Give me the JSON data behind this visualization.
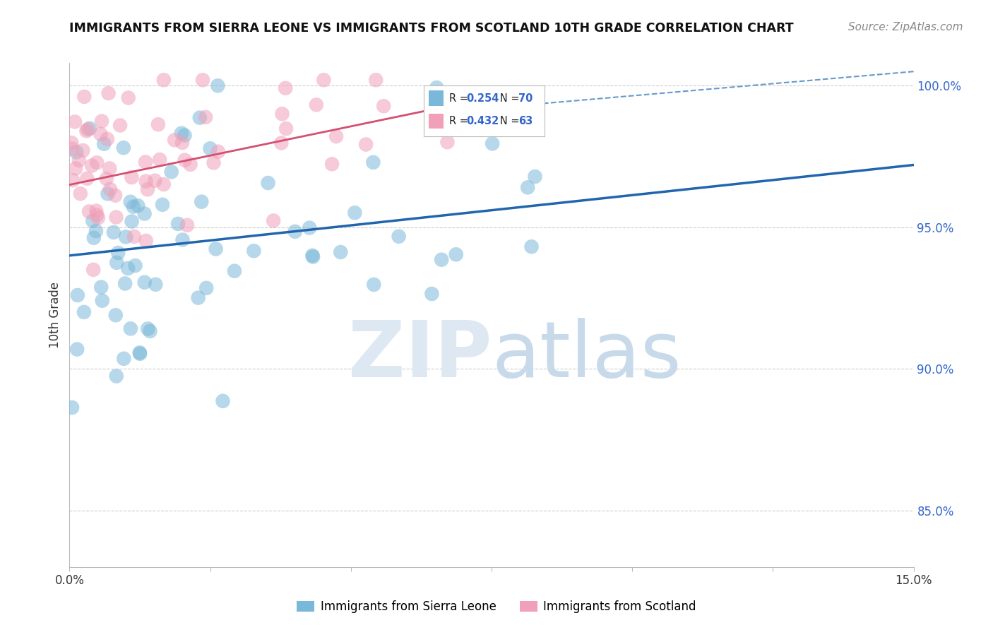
{
  "title": "IMMIGRANTS FROM SIERRA LEONE VS IMMIGRANTS FROM SCOTLAND 10TH GRADE CORRELATION CHART",
  "source_text": "Source: ZipAtlas.com",
  "ylabel": "10th Grade",
  "ytick_vals": [
    0.85,
    0.9,
    0.95,
    1.0
  ],
  "ytick_labels": [
    "85.0%",
    "90.0%",
    "95.0%",
    "100.0%"
  ],
  "xlim": [
    0.0,
    0.15
  ],
  "ylim": [
    0.83,
    1.008
  ],
  "scatter_color_blue": "#7ab8d9",
  "scatter_color_pink": "#f0a0b8",
  "line_color_blue": "#2166ac",
  "line_color_pink": "#d45070",
  "line_color_dashed": "#6699cc",
  "watermark_color": "#dde8f2",
  "background_color": "#ffffff",
  "grid_color": "#cccccc",
  "legend_R_blue": "0.254",
  "legend_N_blue": "70",
  "legend_R_pink": "0.432",
  "legend_N_pink": "63",
  "legend_label_blue": "Immigrants from Sierra Leone",
  "legend_label_pink": "Immigrants from Scotland",
  "blue_line": [
    0.0,
    0.94,
    0.15,
    0.972
  ],
  "pink_line": [
    0.0,
    0.965,
    0.08,
    0.998
  ],
  "dashed_line": [
    0.08,
    0.993,
    0.15,
    1.005
  ]
}
